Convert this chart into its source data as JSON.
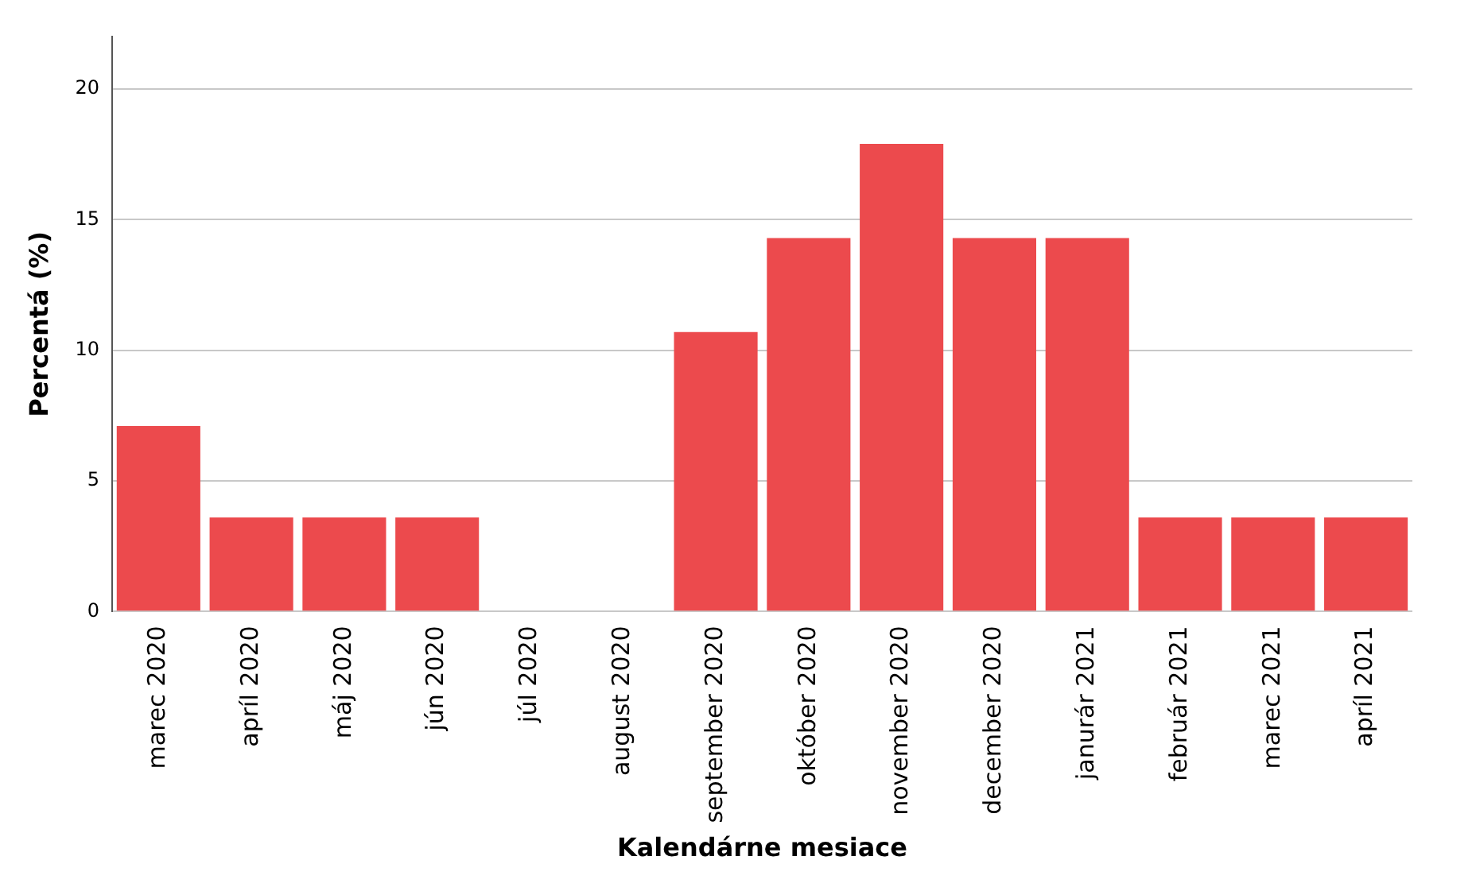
{
  "chart_data": {
    "type": "bar",
    "xlabel": "Kalendárne mesiace",
    "ylabel": "Percentá (%)",
    "categories": [
      "marec 2020",
      "apríl 2020",
      "máj 2020",
      "jún 2020",
      "júl 2020",
      "august 2020",
      "september 2020",
      "október 2020",
      "november 2020",
      "december 2020",
      "janurár 2021",
      "február 2021",
      "marec 2021",
      "apríl 2021"
    ],
    "values": [
      7.1,
      3.6,
      3.6,
      3.6,
      0,
      0,
      10.7,
      14.3,
      17.9,
      14.3,
      14.3,
      3.6,
      3.6,
      3.6
    ],
    "color": "#ec4a4d",
    "ylim": [
      0,
      22
    ],
    "yticks": [
      0,
      5,
      10,
      15,
      20
    ],
    "grid": "y",
    "legend": false
  }
}
